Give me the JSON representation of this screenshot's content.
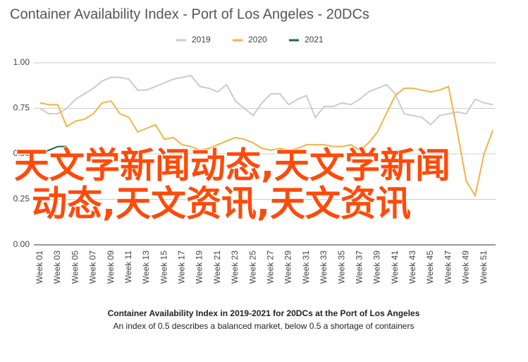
{
  "chart_data": {
    "type": "line",
    "title": "Container Availability Index - Port of Los Angeles - 20DCs",
    "categories": [
      "Week 01",
      null,
      "Week 03",
      null,
      "Week 05",
      null,
      "Week 07",
      null,
      "Week 09",
      null,
      "Week 11",
      null,
      "Week 13",
      null,
      "Week 15",
      null,
      "Week 17",
      null,
      "Week 19",
      null,
      "Week 21",
      null,
      "Week 23",
      null,
      "Week 25",
      null,
      "Week 27",
      null,
      "Week 29",
      null,
      "Week 31",
      null,
      "Week 33",
      null,
      "Week 35",
      null,
      "Week 37",
      null,
      "Week 39",
      null,
      "Week 41",
      null,
      "Week 43",
      null,
      "Week 45",
      null,
      "Week 47",
      null,
      "Week 49",
      null,
      "Week 51",
      null
    ],
    "series": [
      {
        "name": "2019",
        "color": "#cccccc",
        "values": [
          0.75,
          0.72,
          0.72,
          0.75,
          0.8,
          0.83,
          0.86,
          0.9,
          0.92,
          0.92,
          0.91,
          0.85,
          0.85,
          0.87,
          0.89,
          0.91,
          0.92,
          0.93,
          0.87,
          0.86,
          0.84,
          0.88,
          0.79,
          0.75,
          0.71,
          0.78,
          0.83,
          0.83,
          0.77,
          0.8,
          0.82,
          0.7,
          0.76,
          0.76,
          0.78,
          0.77,
          0.8,
          0.84,
          0.86,
          0.88,
          0.83,
          0.72,
          0.71,
          0.7,
          0.66,
          0.71,
          0.72,
          0.73,
          0.72,
          0.8,
          0.78,
          0.77
        ]
      },
      {
        "name": "2020",
        "color": "#f0b443",
        "values": [
          0.78,
          0.77,
          0.77,
          0.65,
          0.68,
          0.69,
          0.72,
          0.78,
          0.79,
          0.72,
          0.7,
          0.62,
          0.64,
          0.66,
          0.58,
          0.59,
          0.55,
          0.54,
          0.52,
          0.53,
          0.55,
          0.57,
          0.59,
          0.58,
          0.56,
          0.53,
          0.52,
          0.53,
          0.52,
          0.53,
          0.55,
          0.55,
          0.55,
          0.54,
          0.54,
          0.55,
          0.52,
          0.56,
          0.62,
          0.72,
          0.82,
          0.86,
          0.86,
          0.85,
          0.84,
          0.85,
          0.87,
          0.62,
          0.35,
          0.27,
          0.5,
          0.63
        ]
      },
      {
        "name": "2021",
        "color": "#1e6b4a",
        "values": [
          0.5,
          0.52,
          0.54,
          0.54,
          null,
          null,
          null,
          null,
          null,
          null,
          null,
          null,
          null,
          null,
          null,
          null,
          null,
          null,
          null,
          null,
          null,
          null,
          null,
          null,
          null,
          null,
          null,
          null,
          null,
          null,
          null,
          null,
          null,
          null,
          null,
          null,
          null,
          null,
          null,
          null,
          null,
          null,
          null,
          null,
          null,
          null,
          null,
          null,
          null,
          null,
          null,
          null
        ]
      }
    ],
    "ylim": [
      0,
      1
    ],
    "yticks": [
      {
        "value": 0,
        "label": "0.00"
      },
      {
        "value": 0.25,
        "label": "0.25"
      },
      {
        "value": 0.5,
        "label": "0.50"
      },
      {
        "value": 0.75,
        "label": "0.75"
      },
      {
        "value": 1,
        "label": "1.00"
      }
    ],
    "grid": true,
    "legend": "top",
    "caption": "Container Availability Index in 2019-2021 for 20DCs at the Port of Los Angeles",
    "subcaption": "An index of 0.5 describes a balanced market, below 0.5 a shortage of containers",
    "annotations": [
      "天文学新闻动态,天文学新闻",
      "动态,天文资讯,天文资讯"
    ]
  }
}
